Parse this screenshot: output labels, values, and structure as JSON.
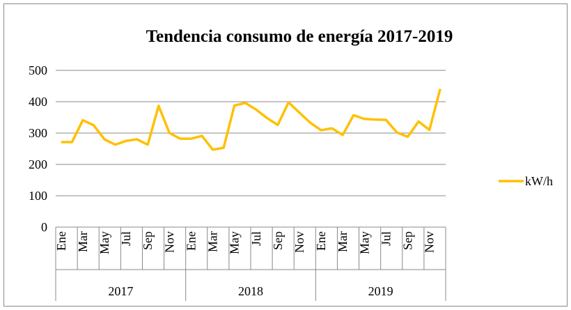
{
  "chart_data": {
    "type": "line",
    "title": "Tendencia consumo de energía 2017-2019",
    "categories": [
      "Ene",
      null,
      "Mar",
      null,
      "May",
      null,
      "Jul",
      null,
      "Sep",
      null,
      "Nov",
      null,
      "Ene",
      null,
      "Mar",
      null,
      "May",
      null,
      "Jul",
      null,
      "Sep",
      null,
      "Nov",
      null,
      "Ene",
      null,
      "Mar",
      null,
      "May",
      null,
      "Jul",
      null,
      "Sep",
      null,
      "Nov",
      null
    ],
    "groups": [
      "2017",
      "2018",
      "2019"
    ],
    "series": [
      {
        "name": "kW/h",
        "color": "#ffc000",
        "values": [
          271,
          271,
          341,
          325,
          280,
          263,
          275,
          280,
          263,
          387,
          300,
          282,
          282,
          291,
          247,
          253,
          388,
          396,
          375,
          348,
          326,
          398,
          365,
          333,
          309,
          315,
          294,
          357,
          345,
          343,
          342,
          302,
          288,
          337,
          310,
          441
        ]
      }
    ],
    "ylim": [
      0,
      500
    ],
    "yticks": [
      0,
      100,
      200,
      300,
      400,
      500
    ],
    "grid": true,
    "legend": "right"
  }
}
